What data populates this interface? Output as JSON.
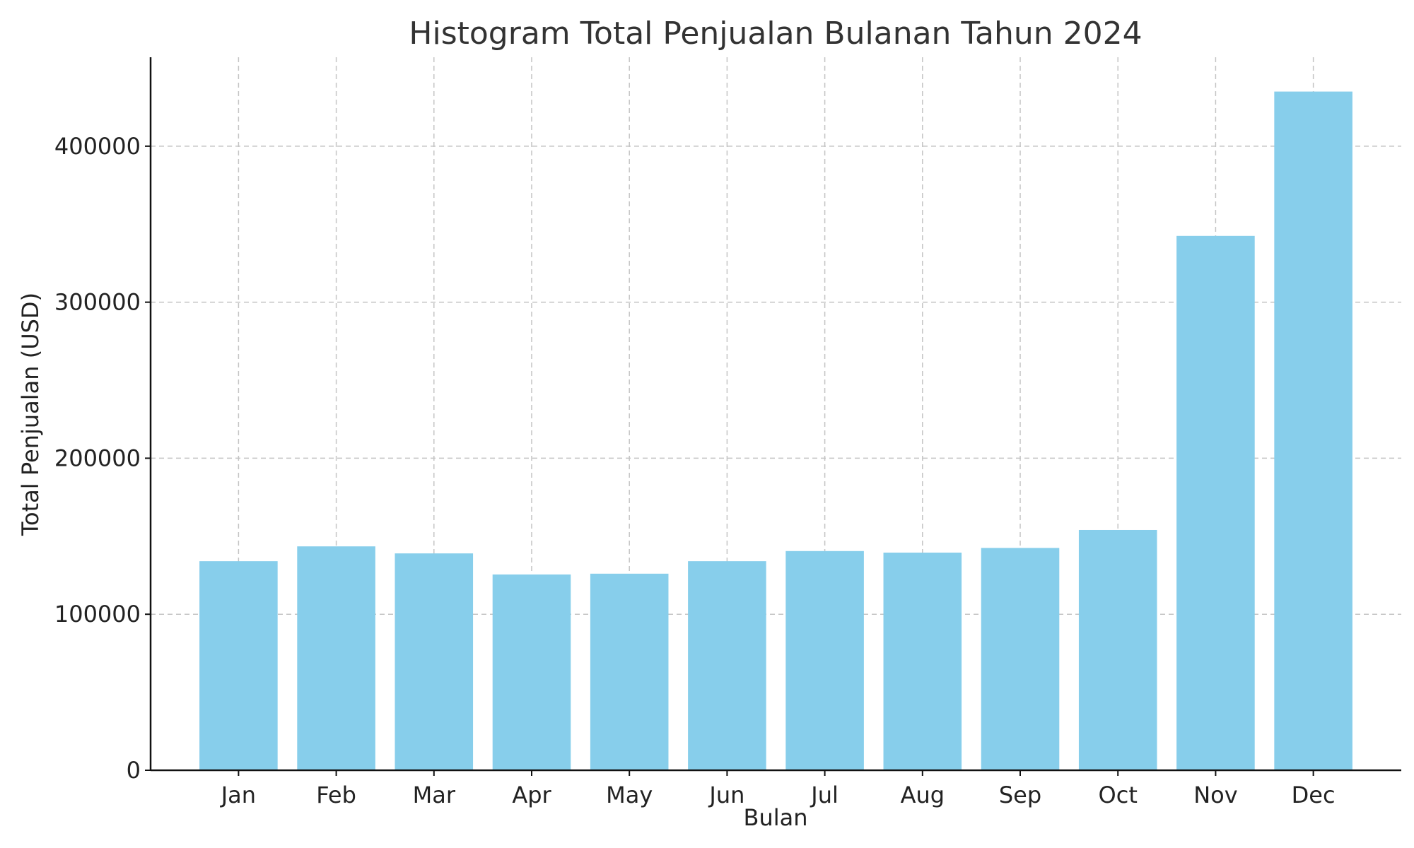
{
  "chart_data": {
    "type": "bar",
    "title": "Histogram Total Penjualan Bulanan Tahun 2024",
    "xlabel": "Bulan",
    "ylabel": "Total Penjualan (USD)",
    "categories": [
      "Jan",
      "Feb",
      "Mar",
      "Apr",
      "May",
      "Jun",
      "Jul",
      "Aug",
      "Sep",
      "Oct",
      "Nov",
      "Dec"
    ],
    "values": [
      134000,
      143500,
      139000,
      125500,
      126000,
      134000,
      140500,
      139500,
      142500,
      154000,
      342500,
      435000
    ],
    "ylim": [
      0,
      457000
    ],
    "yticks": [
      0,
      100000,
      200000,
      300000,
      400000
    ],
    "ytick_labels": [
      "0",
      "100000",
      "200000",
      "300000",
      "400000"
    ],
    "grid": true,
    "bar_color": "#87ceeb"
  }
}
